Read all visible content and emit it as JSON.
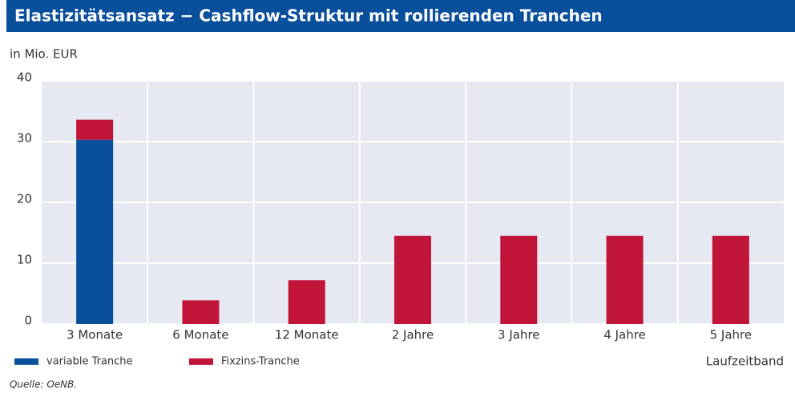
{
  "chart_data": {
    "type": "stacked_bar",
    "title": "Elastizitätsansatz − Cashflow-Struktur mit rollierenden Tranchen",
    "y_label": "in Mio. EUR",
    "x_label": "Laufzeitband",
    "source": "Quelle: OeNB.",
    "categories": [
      "3 Monate",
      "6 Monate",
      "12 Monate",
      "2 Jahre",
      "3 Jahre",
      "4 Jahre",
      "5 Jahre"
    ],
    "series": [
      {
        "name": "variable Tranche",
        "color": "#0a4f9c",
        "values": [
          30.3,
          0,
          0,
          0,
          0,
          0,
          0
        ]
      },
      {
        "name": "Fixzins-Tranche",
        "color": "#c01438",
        "values": [
          3.3,
          3.9,
          7.2,
          14.5,
          14.5,
          14.5,
          14.5
        ]
      }
    ],
    "ylim": [
      0,
      40
    ],
    "yticks": [
      0,
      10,
      20,
      30,
      40
    ],
    "grid": true
  }
}
